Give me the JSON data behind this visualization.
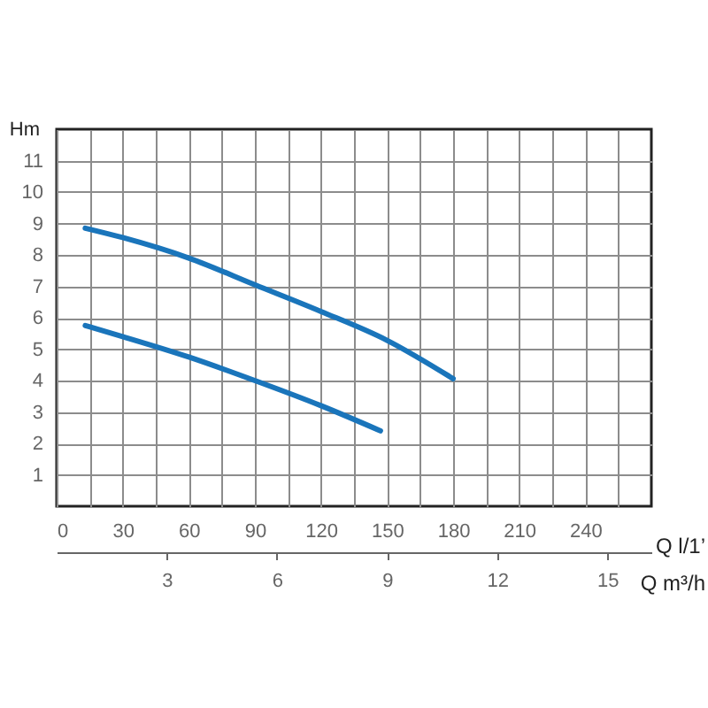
{
  "chart_data": {
    "type": "line",
    "xlabel": "Q l/1’",
    "ylabel": "Hm",
    "x2label": "Q m³/h",
    "xlim": [
      0,
      270
    ],
    "ylim": [
      0,
      12
    ],
    "xticks": [
      0,
      {
        "value": 15,
        "label": null
      },
      30,
      {
        "value": 45,
        "label": null
      },
      60,
      {
        "value": 75,
        "label": null
      },
      90,
      {
        "value": 105,
        "label": null
      },
      120,
      {
        "value": 135,
        "label": null
      },
      150,
      {
        "value": 165,
        "label": null
      },
      180,
      {
        "value": 195,
        "label": null
      },
      210,
      {
        "value": 225,
        "label": null
      },
      240,
      {
        "value": 255,
        "label": null
      }
    ],
    "yticks": [
      1,
      2,
      3,
      4,
      5,
      6,
      7,
      8,
      9,
      10,
      11
    ],
    "x2lim": [
      0,
      16.2
    ],
    "x2ticks": [
      3,
      6,
      9,
      12,
      15
    ],
    "grid": true,
    "marker": "none",
    "line_style": "solid",
    "series": [
      {
        "color": "#1a75bb",
        "x": [
          13,
          30,
          60,
          90,
          120,
          150,
          180
        ],
        "values": [
          8.85,
          8.55,
          7.9,
          7.05,
          6.2,
          5.28,
          4.06
        ]
      },
      {
        "color": "#1a75bb",
        "x": [
          13,
          30,
          60,
          90,
          120,
          147
        ],
        "values": [
          5.75,
          5.4,
          4.75,
          4.0,
          3.2,
          2.4
        ]
      }
    ]
  }
}
